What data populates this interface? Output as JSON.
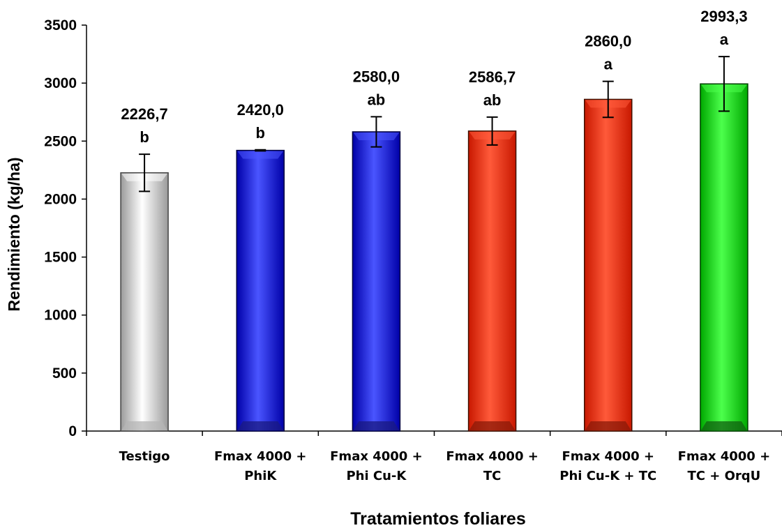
{
  "chart_data": {
    "type": "bar",
    "title": "",
    "xlabel": "Tratamientos foliares",
    "ylabel": "Rendimiento (kg/ha)",
    "ylim": [
      0,
      3500
    ],
    "yticks": [
      0,
      500,
      1000,
      1500,
      2000,
      2500,
      3000,
      3500
    ],
    "grid": false,
    "legend": "none",
    "categories": [
      [
        "Testigo"
      ],
      [
        "Fmax 4000 +",
        "PhiK"
      ],
      [
        "Fmax 4000 +",
        "Phi Cu-K"
      ],
      [
        "Fmax 4000 +",
        "TC"
      ],
      [
        "Fmax 4000 +",
        "Phi Cu-K + TC"
      ],
      [
        "Fmax 4000 +",
        "TC + OrqU"
      ]
    ],
    "values": [
      2226.7,
      2420.0,
      2580.0,
      2586.7,
      2860.0,
      2993.3
    ],
    "value_labels": [
      "2226,7",
      "2420,0",
      "2580,0",
      "2586,7",
      "2860,0",
      "2993,3"
    ],
    "significance": [
      "b",
      "b",
      "ab",
      "ab",
      "a",
      "a"
    ],
    "error": [
      160,
      5,
      130,
      120,
      155,
      235
    ],
    "colors": [
      "white",
      "blue",
      "blue",
      "red",
      "red",
      "green"
    ]
  },
  "palette": {
    "white": {
      "dark": "#9a9a9a",
      "mid": "#ffffff",
      "edge": "#444444",
      "bottom": "#b5b5b5"
    },
    "blue": {
      "dark": "#0000a8",
      "mid": "#4a55ff",
      "edge": "#000040",
      "bottom": "#1a1a80"
    },
    "red": {
      "dark": "#c81800",
      "mid": "#ff5a3a",
      "edge": "#401000",
      "bottom": "#8a1a08"
    },
    "green": {
      "dark": "#00a800",
      "mid": "#4cff4c",
      "edge": "#004000",
      "bottom": "#106010"
    }
  }
}
